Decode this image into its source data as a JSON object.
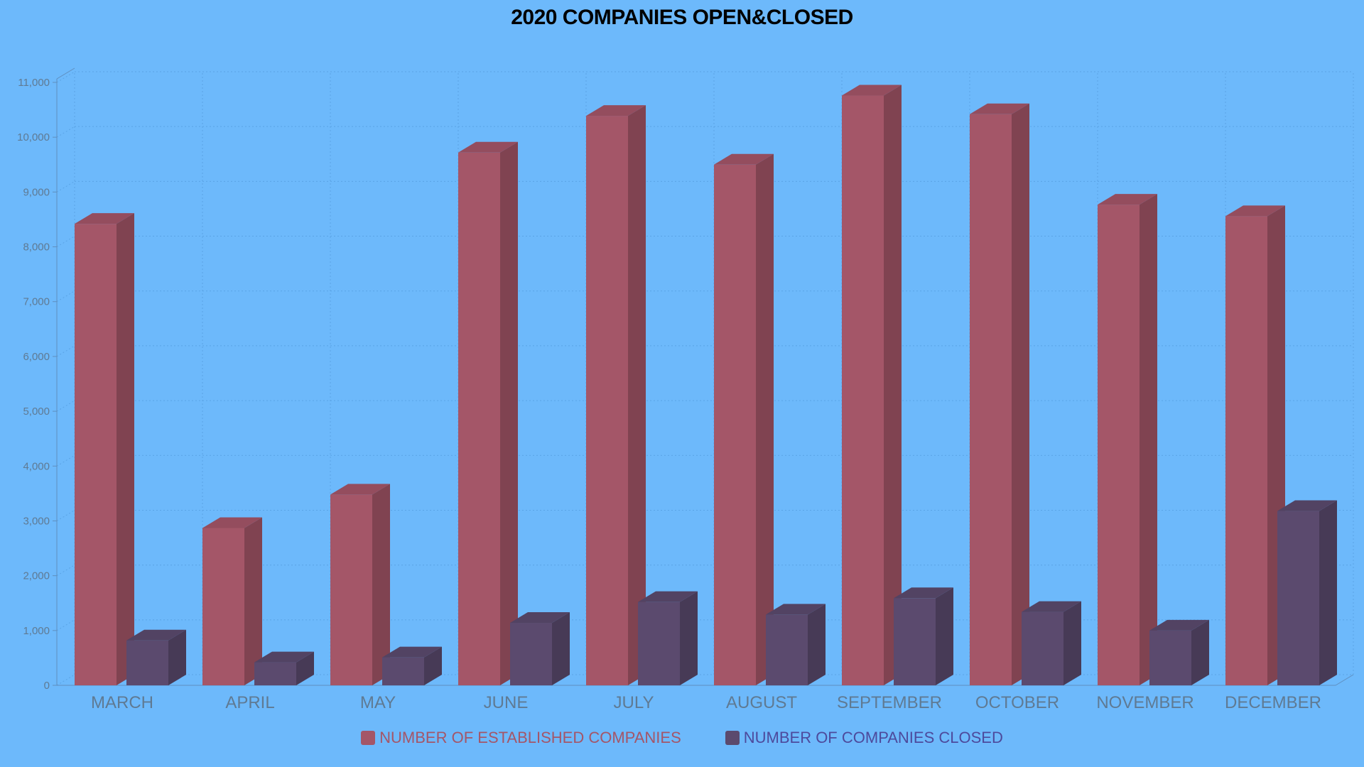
{
  "chart_data": {
    "type": "bar",
    "title": "2020 COMPANIES OPEN&CLOSED",
    "xlabel": "",
    "ylabel": "",
    "categories": [
      "MARCH",
      "APRIL",
      "MAY",
      "JUNE",
      "JULY",
      "AUGUST",
      "SEPTEMBER",
      "OCTOBER",
      "NOVEMBER",
      "DECEMBER"
    ],
    "series": [
      {
        "name": "NUMBER OF ESTABLISHED COMPANIES",
        "color": "#a45668",
        "values": [
          8420,
          2870,
          3480,
          9720,
          10390,
          9500,
          10760,
          10420,
          8770,
          8560
        ]
      },
      {
        "name": "NUMBER OF COMPANIES CLOSED",
        "color": "#5b4a6e",
        "values": [
          820,
          420,
          510,
          1140,
          1520,
          1290,
          1590,
          1340,
          1000,
          3180
        ]
      }
    ],
    "ylim": [
      0,
      11000
    ],
    "yticks": [
      "0",
      "1,000",
      "2,000",
      "3,000",
      "4,000",
      "5,000",
      "6,000",
      "7,000",
      "8,000",
      "9,000",
      "10,000",
      "11,000"
    ],
    "grid": true,
    "legend_position": "bottom",
    "style": "3d-column"
  }
}
